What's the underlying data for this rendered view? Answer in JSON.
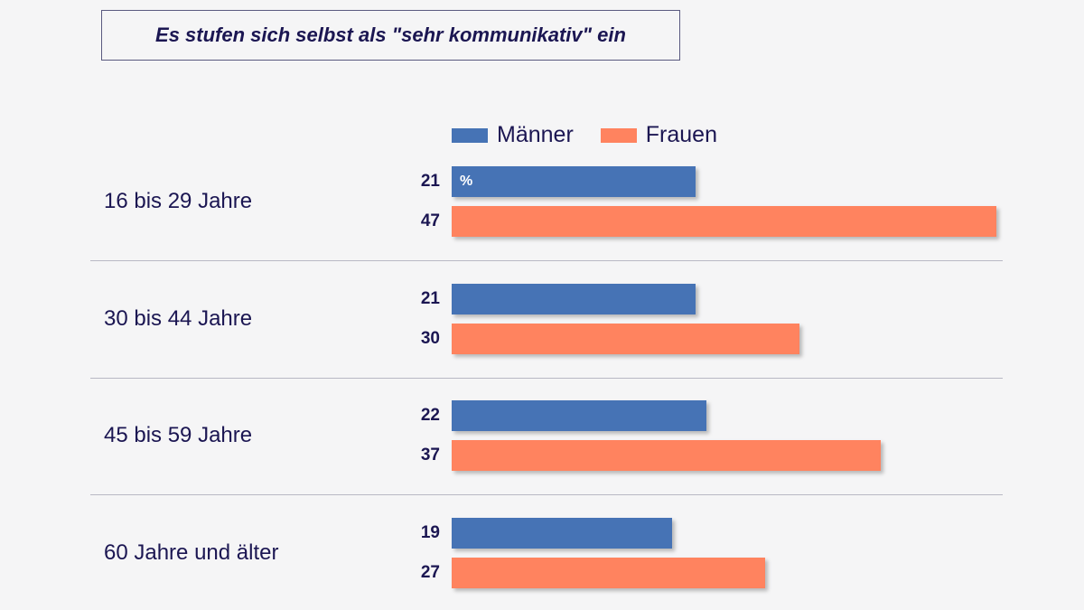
{
  "chart_data": {
    "type": "bar",
    "orientation": "horizontal",
    "title": "Es stufen sich selbst als \"sehr kommunikativ\" ein",
    "unit_label": "%",
    "categories": [
      "16 bis 29 Jahre",
      "30 bis 44 Jahre",
      "45 bis 59 Jahre",
      "60 Jahre und älter"
    ],
    "series": [
      {
        "name": "Männer",
        "color": "#4673b5",
        "values": [
          21,
          21,
          22,
          19
        ]
      },
      {
        "name": "Frauen",
        "color": "#ff835f",
        "values": [
          47,
          30,
          37,
          27
        ]
      }
    ],
    "legend": "top",
    "grid": false
  }
}
